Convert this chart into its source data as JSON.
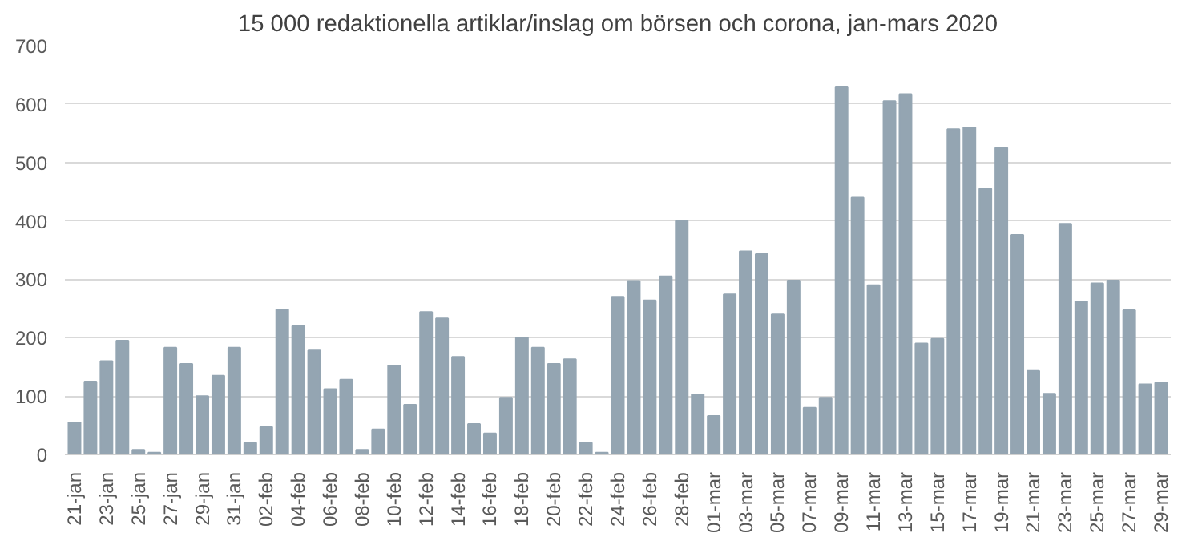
{
  "chart_data": {
    "type": "bar",
    "title": "15 000 redaktionella artiklar/inslag om börsen och corona, jan-mars 2020",
    "categories": [
      "21-jan",
      null,
      "23-jan",
      null,
      "25-jan",
      null,
      "27-jan",
      null,
      "29-jan",
      null,
      "31-jan",
      null,
      "02-feb",
      null,
      "04-feb",
      null,
      "06-feb",
      null,
      "08-feb",
      null,
      "10-feb",
      null,
      "12-feb",
      null,
      "14-feb",
      null,
      "16-feb",
      null,
      "18-feb",
      null,
      "20-feb",
      null,
      "22-feb",
      null,
      "24-feb",
      null,
      "26-feb",
      null,
      "28-feb",
      null,
      "01-mar",
      null,
      "03-mar",
      null,
      "05-mar",
      null,
      "07-mar",
      null,
      "09-mar",
      null,
      "11-mar",
      null,
      "13-mar",
      null,
      "15-mar",
      null,
      "17-mar",
      null,
      "19-mar",
      null,
      "21-mar",
      null,
      "23-mar",
      null,
      "25-mar",
      null,
      "27-mar",
      null,
      "29-mar"
    ],
    "values": [
      55,
      125,
      160,
      195,
      8,
      3,
      183,
      155,
      100,
      135,
      183,
      20,
      47,
      248,
      220,
      178,
      112,
      128,
      8,
      43,
      152,
      85,
      244,
      233,
      167,
      52,
      36,
      97,
      200,
      183,
      155,
      163,
      20,
      3,
      270,
      297,
      264,
      305,
      400,
      103,
      66,
      274,
      348,
      343,
      240,
      298,
      80,
      97,
      630,
      440,
      290,
      605,
      617,
      190,
      198,
      557,
      560,
      455,
      525,
      376,
      143,
      104,
      395,
      262,
      293,
      298,
      247,
      120,
      123
    ],
    "color": "#94a5b2",
    "ylim": [
      0,
      700
    ],
    "yticks": [
      0,
      100,
      200,
      300,
      400,
      500,
      600,
      700
    ],
    "grid": "y"
  }
}
